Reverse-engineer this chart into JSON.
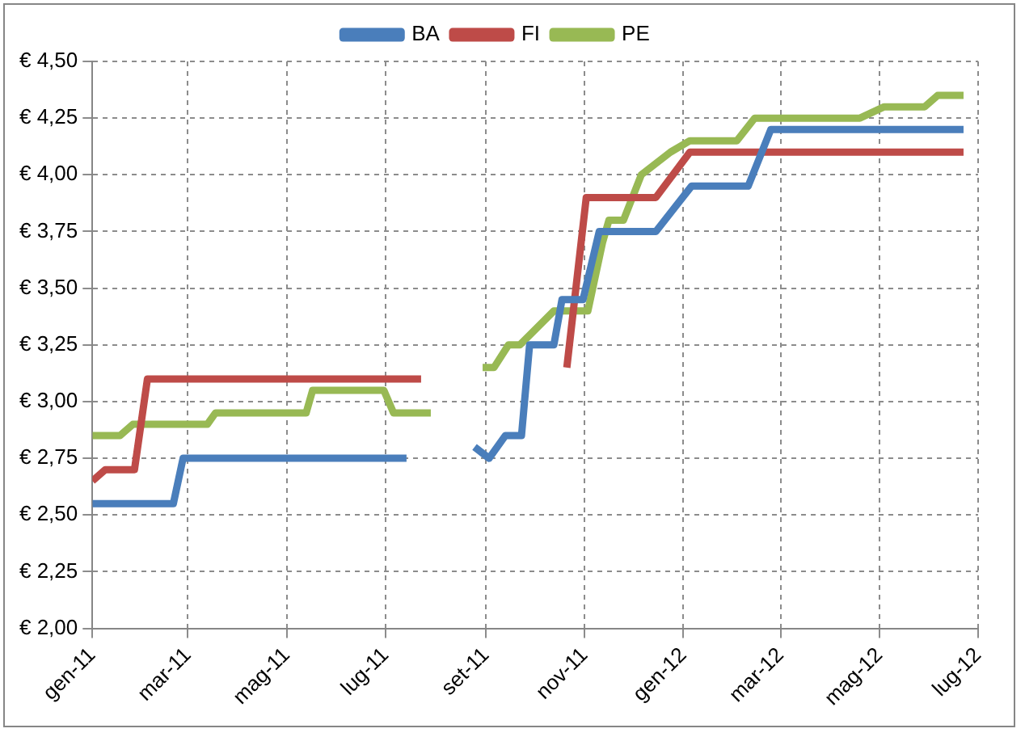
{
  "chart_data": {
    "type": "line",
    "series": [
      {
        "name": "BA",
        "color": "#4a7ebb",
        "x": [
          "2011-01-01",
          "2011-02-20",
          "2011-02-26",
          "2011-07-14",
          "2011-08-05",
          "2011-08-25",
          "2011-09-03",
          "2011-09-13",
          "2011-09-23",
          "2011-09-28",
          "2011-10-13",
          "2011-10-18",
          "2011-10-31",
          "2011-11-10",
          "2011-12-15",
          "2012-01-06",
          "2012-02-10",
          "2012-02-24",
          "2012-06-22"
        ],
        "values": [
          2.55,
          2.55,
          2.75,
          2.75,
          null,
          2.8,
          2.75,
          2.85,
          2.85,
          3.25,
          3.25,
          3.45,
          3.45,
          3.75,
          3.75,
          3.95,
          3.95,
          4.2,
          4.2
        ]
      },
      {
        "name": "FI",
        "color": "#be4b48",
        "x": [
          "2011-01-01",
          "2011-01-09",
          "2011-01-27",
          "2011-02-04",
          "2011-07-23",
          "2011-08-20",
          "2011-10-21",
          "2011-11-02",
          "2011-12-15",
          "2012-01-05",
          "2012-06-22"
        ],
        "values": [
          2.65,
          2.7,
          2.7,
          3.1,
          3.1,
          null,
          3.15,
          3.9,
          3.9,
          4.1,
          4.1
        ]
      },
      {
        "name": "PE",
        "color": "#98b954",
        "x": [
          "2011-01-01",
          "2011-01-18",
          "2011-01-26",
          "2011-03-13",
          "2011-03-18",
          "2011-05-13",
          "2011-05-17",
          "2011-06-30",
          "2011-07-06",
          "2011-07-29",
          "2011-08-15",
          "2011-08-30",
          "2011-09-06",
          "2011-09-15",
          "2011-09-22",
          "2011-10-13",
          "2011-11-03",
          "2011-11-12",
          "2011-11-16",
          "2011-11-25",
          "2011-12-06",
          "2011-12-15",
          "2011-12-24",
          "2012-01-05",
          "2012-02-03",
          "2012-02-14",
          "2012-04-19",
          "2012-05-04",
          "2012-05-29",
          "2012-06-06",
          "2012-06-22"
        ],
        "values": [
          2.85,
          2.85,
          2.9,
          2.9,
          2.95,
          2.95,
          3.05,
          3.05,
          2.95,
          2.95,
          null,
          3.15,
          3.15,
          3.25,
          3.25,
          3.4,
          3.4,
          3.7,
          3.8,
          3.8,
          4.0,
          4.05,
          4.1,
          4.15,
          4.15,
          4.25,
          4.25,
          4.3,
          4.3,
          4.35,
          4.35
        ]
      }
    ],
    "xlim": [
      "2011-01-01",
      "2012-07-01"
    ],
    "xticks": [
      {
        "value": "2011-01-01",
        "label": "gen-11"
      },
      {
        "value": "2011-03-01",
        "label": "mar-11"
      },
      {
        "value": "2011-05-01",
        "label": "mag-11"
      },
      {
        "value": "2011-07-01",
        "label": "lug-11"
      },
      {
        "value": "2011-09-01",
        "label": "set-11"
      },
      {
        "value": "2011-11-01",
        "label": "nov-11"
      },
      {
        "value": "2012-01-01",
        "label": "gen-12"
      },
      {
        "value": "2012-03-01",
        "label": "mar-12"
      },
      {
        "value": "2012-05-01",
        "label": "mag-12"
      },
      {
        "value": "2012-07-01",
        "label": "lug-12"
      }
    ],
    "ylim": [
      2,
      4.5
    ],
    "yticks": [
      {
        "value": 2,
        "label": "€ 2,00"
      },
      {
        "value": 2.25,
        "label": "€ 2,25"
      },
      {
        "value": 2.5,
        "label": "€ 2,50"
      },
      {
        "value": 2.75,
        "label": "€ 2,75"
      },
      {
        "value": 3,
        "label": "€ 3,00"
      },
      {
        "value": 3.25,
        "label": "€ 3,25"
      },
      {
        "value": 3.5,
        "label": "€ 3,50"
      },
      {
        "value": 3.75,
        "label": "€ 3,75"
      },
      {
        "value": 4,
        "label": "€ 4,00"
      },
      {
        "value": 4.25,
        "label": "€ 4,25"
      },
      {
        "value": 4.5,
        "label": "€ 4,50"
      }
    ],
    "grid": true,
    "legend": "top",
    "marker": "none",
    "line_style": "solid"
  }
}
